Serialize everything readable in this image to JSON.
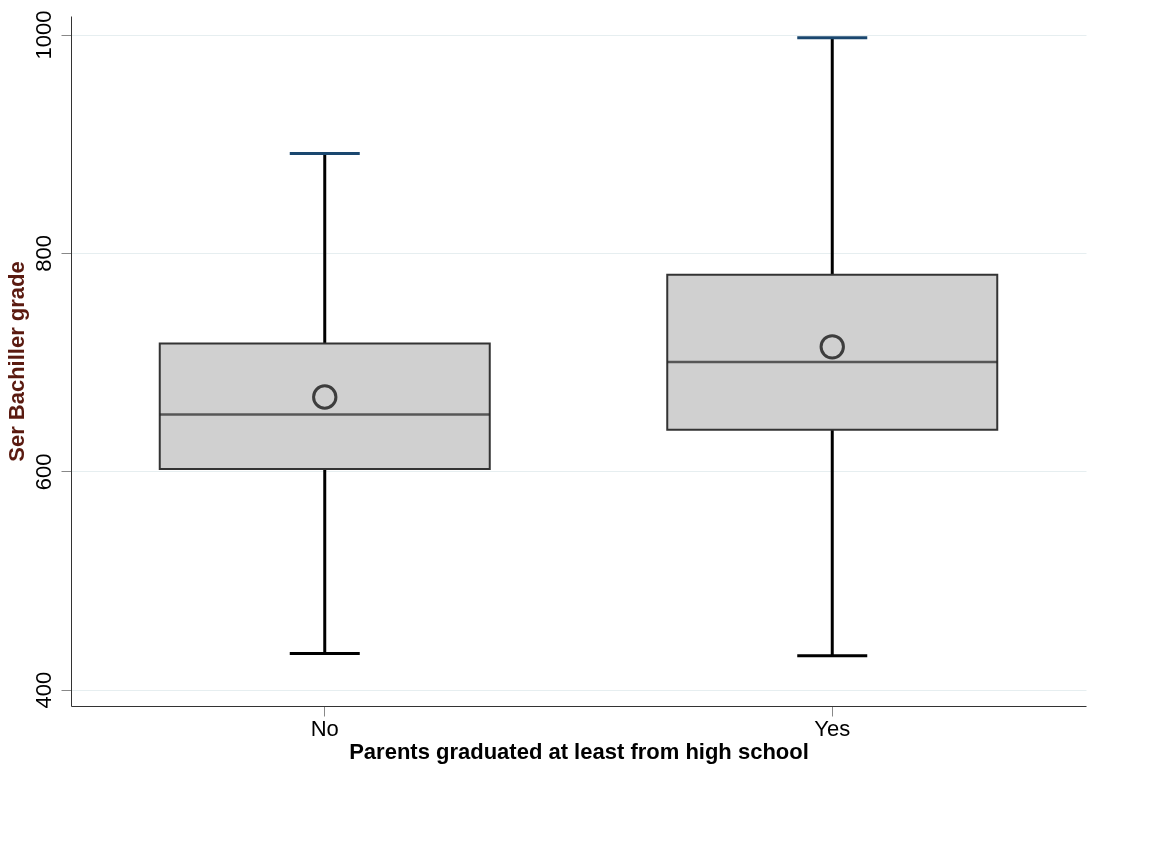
{
  "chart_data": {
    "type": "box",
    "xlabel": "Parents graduated at least from high school",
    "ylabel": "Ser Bachiller grade",
    "categories": [
      "No",
      "Yes"
    ],
    "boxes": [
      {
        "low": 433,
        "q1": 602,
        "median": 652,
        "q3": 717,
        "high": 891,
        "mean": 668
      },
      {
        "low": 431,
        "q1": 638,
        "median": 700,
        "q3": 780,
        "high": 997,
        "mean": 714
      }
    ],
    "color": "#d0d0d0",
    "ylim": [
      385,
      1017
    ],
    "yticks": [
      400,
      600,
      800,
      1000
    ],
    "grid": "y",
    "marker": "circle"
  }
}
